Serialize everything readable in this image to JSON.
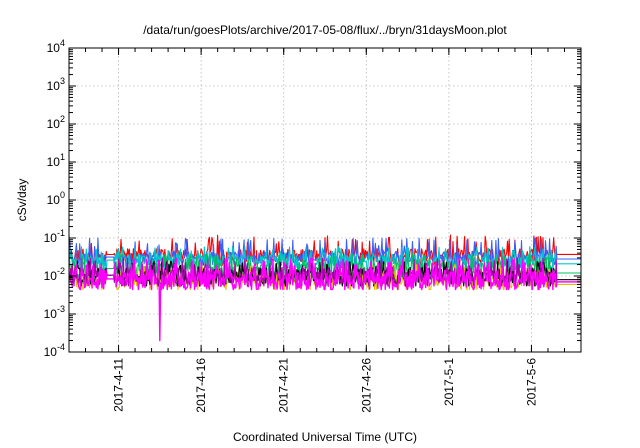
{
  "chart_data": {
    "type": "line",
    "title": "/data/run/goesPlots/archive/2017-05-08/flux/../bryn/31daysMoon.plot",
    "xlabel": "Coordinated Universal Time (UTC)",
    "ylabel": "cSv/day",
    "yscale": "log",
    "ylim": [
      0.0001,
      10000
    ],
    "xlim": [
      "2017-04-08",
      "2017-05-09"
    ],
    "grid": true,
    "legend": "none",
    "yticks": [
      {
        "value": 0.0001,
        "base": "10",
        "exp": "-4"
      },
      {
        "value": 0.001,
        "base": "10",
        "exp": "-3"
      },
      {
        "value": 0.01,
        "base": "10",
        "exp": "-2"
      },
      {
        "value": 0.1,
        "base": "10",
        "exp": "-1"
      },
      {
        "value": 1,
        "base": "10",
        "exp": "0"
      },
      {
        "value": 10,
        "base": "10",
        "exp": "1"
      },
      {
        "value": 100,
        "base": "10",
        "exp": "2"
      },
      {
        "value": 1000,
        "base": "10",
        "exp": "3"
      },
      {
        "value": 10000,
        "base": "10",
        "exp": "4"
      }
    ],
    "xticks": [
      {
        "date": "2017-04-11",
        "label": "2017-4-11"
      },
      {
        "date": "2017-04-16",
        "label": "2017-4-16"
      },
      {
        "date": "2017-04-21",
        "label": "2017-4-21"
      },
      {
        "date": "2017-04-26",
        "label": "2017-4-26"
      },
      {
        "date": "2017-05-01",
        "label": "2017-5-1"
      },
      {
        "date": "2017-05-06",
        "label": "2017-5-6"
      }
    ],
    "data_start": "2017-04-08",
    "data_end": "2017-05-07T12:00",
    "gap": [
      "2017-04-10T06:00",
      "2017-04-10T18:00"
    ],
    "extension_end": "2017-05-09",
    "min_spike": {
      "x": "2017-04-13T12:00",
      "y": 0.0002
    },
    "series": [
      {
        "color": "#ff0000",
        "base": 0.035,
        "amp": 1.0,
        "spike_max": 0.12,
        "end_value": 0.037
      },
      {
        "color": "#3a5fff",
        "base": 0.03,
        "amp": 1.0,
        "spike_max": 0.1,
        "end_value": 0.028
      },
      {
        "color": "#00c8c8",
        "base": 0.025,
        "amp": 1.05,
        "spike_max": 0.06,
        "end_value": 0.021
      },
      {
        "color": "#00c060",
        "base": 0.015,
        "amp": 1.3,
        "spike_max": 0.04,
        "end_value": 0.012
      },
      {
        "color": "#e0c000",
        "base": 0.008,
        "amp": 1.25,
        "spike_max": 0.02,
        "end_value": 0.006
      },
      {
        "color": "#000000",
        "base": 0.01,
        "amp": 1.25,
        "spike_max": 0.025,
        "end_value": 0.008
      },
      {
        "color": "#b000b0",
        "base": 0.01,
        "amp": 1.35,
        "spike_max": 0.03,
        "end_value": 0.007
      },
      {
        "color": "#ff00ff",
        "base": 0.008,
        "amp": 1.45,
        "spike_max": 0.03,
        "end_value": 0.007
      }
    ]
  }
}
